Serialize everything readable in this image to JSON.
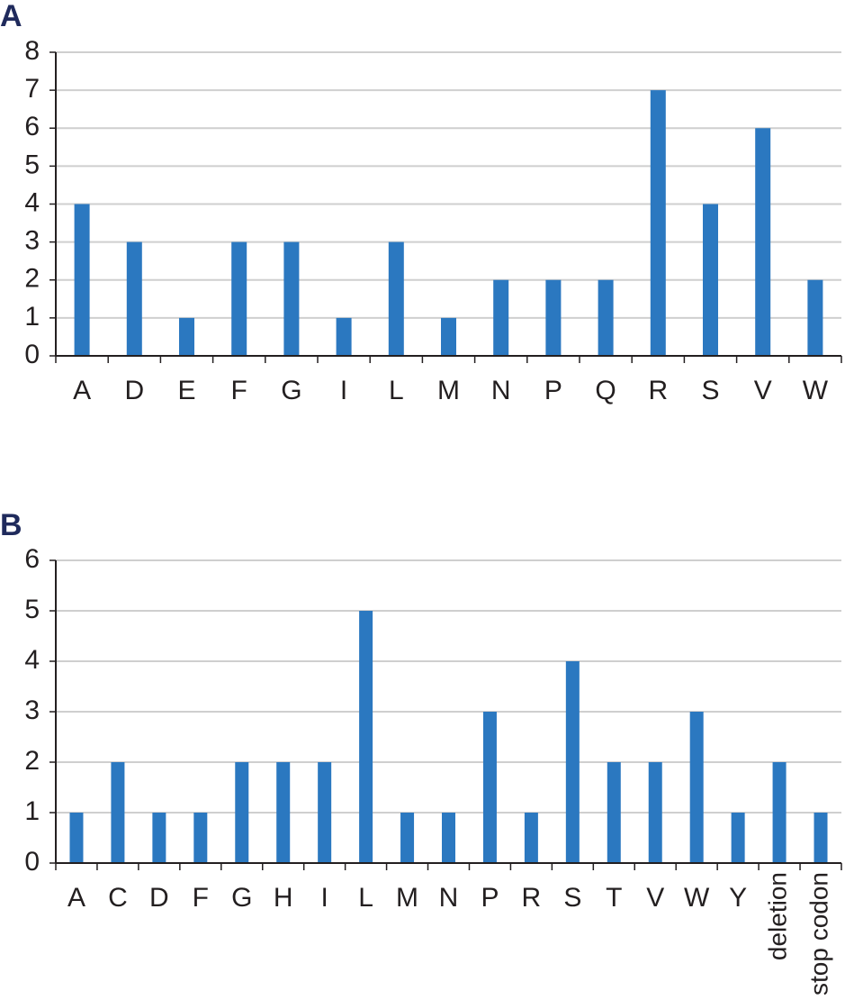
{
  "chart_data": [
    {
      "type": "bar",
      "panel_label": "A",
      "categories": [
        "A",
        "D",
        "E",
        "F",
        "G",
        "I",
        "L",
        "M",
        "N",
        "P",
        "Q",
        "R",
        "S",
        "V",
        "W"
      ],
      "values": [
        4,
        3,
        1,
        3,
        3,
        1,
        3,
        1,
        2,
        2,
        2,
        7,
        4,
        6,
        2
      ],
      "color": "#2b78c0",
      "ylim": [
        0,
        8
      ],
      "yticks": [
        0,
        1,
        2,
        3,
        4,
        5,
        6,
        7,
        8
      ],
      "grid": true
    },
    {
      "type": "bar",
      "panel_label": "B",
      "categories": [
        "A",
        "C",
        "D",
        "F",
        "G",
        "H",
        "I",
        "L",
        "M",
        "N",
        "P",
        "R",
        "S",
        "T",
        "V",
        "W",
        "Y",
        "deletion",
        "stop codon"
      ],
      "values": [
        1,
        2,
        1,
        1,
        2,
        2,
        2,
        5,
        1,
        1,
        3,
        1,
        4,
        2,
        2,
        3,
        1,
        2,
        1
      ],
      "color": "#2b78c0",
      "ylim": [
        0,
        6
      ],
      "yticks": [
        0,
        1,
        2,
        3,
        4,
        5,
        6
      ],
      "grid": true
    }
  ]
}
